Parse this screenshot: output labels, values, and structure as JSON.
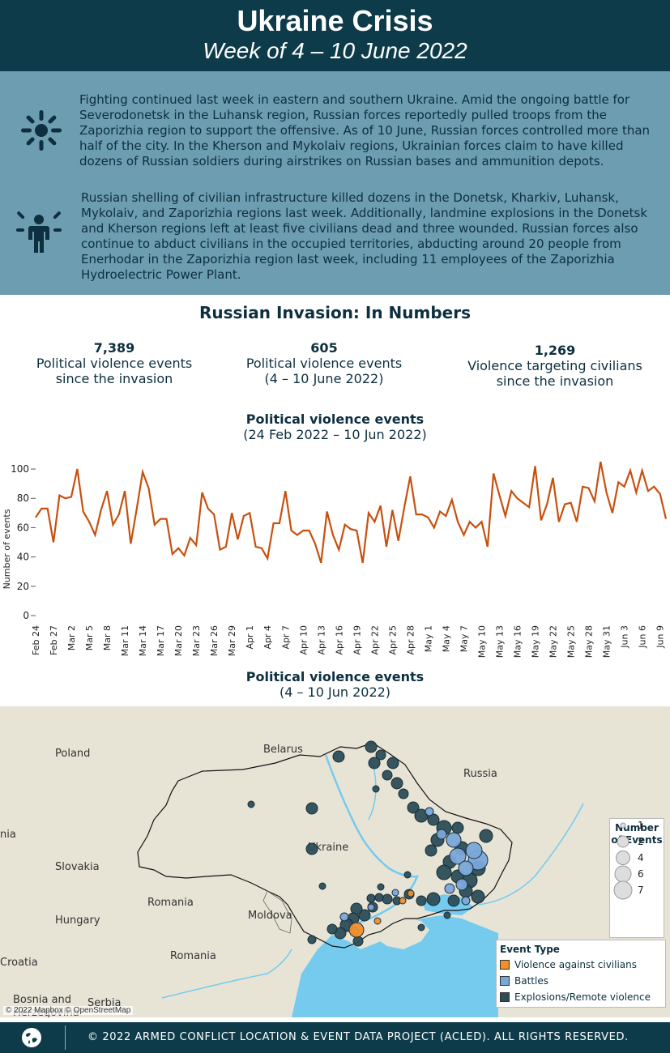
{
  "header": {
    "title": "Ukraine Crisis",
    "subtitle": "Week of 4 – 10 June 2022"
  },
  "summary": {
    "items": [
      {
        "icon": "explosion-icon",
        "text": "Fighting continued last week in eastern and southern Ukraine. Amid the ongoing battle for Severodonetsk in the Luhansk region, Russian forces reportedly pulled troops from the Zaporizhia region to support the offensive. As of 10 June, Russian forces controlled more than half of the city. In the Kherson and Mykolaiv regions, Ukrainian forces claim to have killed dozens of Russian soldiers during airstrikes on Russian bases and ammunition depots."
      },
      {
        "icon": "civilian-icon",
        "text": "Russian shelling of civilian infrastructure killed dozens in the Donetsk, Kharkiv, Luhansk, Mykolaiv, and Zaporizhia regions last week. Additionally, landmine explosions in the Donetsk and Kherson regions left at least five civilians dead and three wounded. Russian forces also continue to abduct civilians in the occupied territories, abducting around 20 people from Enerhodar in the Zaporizhia region last week, including 11 employees of the Zaporizhia Hydroelectric Power Plant."
      }
    ]
  },
  "numbers": {
    "title": "Russian Invasion: In Numbers",
    "stats": [
      {
        "value": "7,389",
        "line1": "Political violence events",
        "line2": "since the invasion"
      },
      {
        "value": "605",
        "line1": "Political violence events",
        "line2": "(4 – 10 June 2022)"
      },
      {
        "value": "1,269",
        "line1": "Violence targeting civilians",
        "line2": "since the invasion"
      }
    ]
  },
  "chart_data": {
    "type": "line",
    "title": "Political violence events",
    "subtitle": "(24 Feb 2022 – 10 Jun 2022)",
    "xlabel": "",
    "ylabel": "Number of events",
    "ylim": [
      0,
      105
    ],
    "yticks": [
      0,
      20,
      40,
      60,
      80,
      100
    ],
    "xtick_labels": [
      "Feb 24",
      "Feb 27",
      "Mar 2",
      "Mar 5",
      "Mar 8",
      "Mar 11",
      "Mar 14",
      "Mar 17",
      "Mar 20",
      "Mar 23",
      "Mar 26",
      "Mar 29",
      "Apr 1",
      "Apr 4",
      "Apr 7",
      "Apr 10",
      "Apr 13",
      "Apr 16",
      "Apr 19",
      "Apr 22",
      "Apr 25",
      "Apr 28",
      "May 1",
      "May 4",
      "May 7",
      "May 10",
      "May 13",
      "May 16",
      "May 19",
      "May 22",
      "May 25",
      "May 28",
      "May 31",
      "Jun 3",
      "Jun 6",
      "Jun 9"
    ],
    "color": "#c8500f",
    "series": [
      {
        "values": [
          67,
          73,
          73,
          50,
          82,
          80,
          81,
          100,
          71,
          64,
          55,
          72,
          85,
          62,
          69,
          85,
          49,
          73,
          98,
          87,
          62,
          66,
          66,
          42,
          46,
          41,
          53,
          48,
          84,
          73,
          69,
          45,
          47,
          70,
          52,
          68,
          70,
          47,
          46,
          39,
          63,
          63,
          85,
          58,
          55,
          58,
          58,
          49,
          36,
          71,
          55,
          45,
          62,
          59,
          58,
          36,
          70,
          64,
          75,
          47,
          72,
          51,
          74,
          95,
          69,
          69,
          67,
          60,
          71,
          68,
          79,
          64,
          55,
          64,
          60,
          64,
          47,
          97,
          82,
          68,
          85,
          80,
          77,
          74,
          102,
          65,
          76,
          94,
          64,
          76,
          77,
          64,
          88,
          87,
          78,
          105,
          84,
          70,
          91,
          88,
          99,
          84,
          99,
          85,
          88,
          83,
          66
        ]
      }
    ]
  },
  "map": {
    "title": "Political violence events",
    "subtitle": "(4 – 10 Jun 2022)",
    "labels": {
      "poland": "Poland",
      "belarus": "Belarus",
      "russia": "Russia",
      "ukraine": "Ukraine",
      "slovakia": "Slovakia",
      "hungary": "Hungary",
      "romania1": "Romania",
      "romania2": "Romania",
      "moldova": "Moldova",
      "croatia": "Croatia",
      "bosnia": "Bosnia and",
      "serbia": "Serbia",
      "herzegovina": "Herzegovina",
      "austria": "nia"
    },
    "attribution": "© 2022 Mapbox © OpenStreetMap",
    "size_legend": {
      "title1": "Number",
      "title2": "of Events",
      "items": [
        "1",
        "2",
        "4",
        "6",
        "7"
      ]
    },
    "type_legend": {
      "title": "Event Type",
      "items": [
        {
          "label": "Violence against civilians",
          "color": "#f28e2b"
        },
        {
          "label": "Battles",
          "color": "#7aa7da"
        },
        {
          "label": "Explosions/Remote violence",
          "color": "#2c4d58"
        }
      ]
    }
  },
  "footer": {
    "text": "© 2022 ARMED CONFLICT LOCATION & EVENT DATA PROJECT (ACLED). ALL RIGHTS RESERVED."
  }
}
